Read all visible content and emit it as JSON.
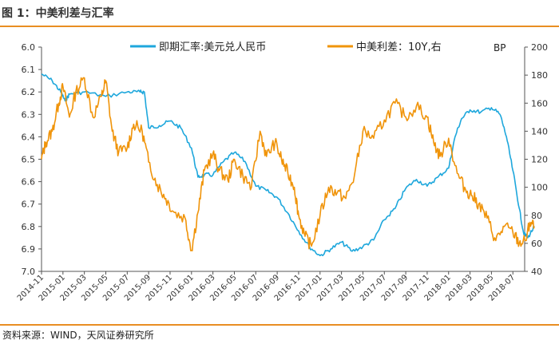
{
  "figure": {
    "title": "图 1：中美利差与汇率",
    "source": "资料来源：WIND，天风证券研究所"
  },
  "chart_data": {
    "type": "line",
    "title": "中美利差与汇率",
    "left_axis": {
      "label": "",
      "ylim": [
        6.0,
        7.0
      ],
      "inverted": true,
      "ticks": [
        "6.0",
        "6.1",
        "6.2",
        "6.3",
        "6.4",
        "6.5",
        "6.6",
        "6.7",
        "6.8",
        "6.9",
        "7.0"
      ]
    },
    "right_axis": {
      "label": "BP",
      "ylim": [
        40,
        200
      ],
      "ticks": [
        "200",
        "180",
        "160",
        "140",
        "120",
        "100",
        "80",
        "60",
        "40"
      ]
    },
    "x_ticks": [
      "2014-11",
      "2015-01",
      "2015-03",
      "2015-05",
      "2015-07",
      "2015-09",
      "2015-11",
      "2016-01",
      "2016-03",
      "2016-05",
      "2016-07",
      "2016-09",
      "2016-11",
      "2017-01",
      "2017-03",
      "2017-05",
      "2017-07",
      "2017-09",
      "2017-11",
      "2018-01",
      "2018-03",
      "2018-05",
      "2018-07"
    ],
    "colors": {
      "fx": "#1ea7dc",
      "spread": "#f0940a",
      "axis": "#555555"
    },
    "series": [
      {
        "name": "即期汇率:美元兑人民币",
        "axis": "left",
        "color": "#1ea7dc",
        "x": [
          0.0,
          0.5,
          0.9,
          1.1,
          1.3,
          2.0,
          3.0,
          4.0,
          4.6,
          4.8,
          5.0,
          5.5,
          6.0,
          6.5,
          7.0,
          7.3,
          7.6,
          8.0,
          8.5,
          9.0,
          9.5,
          10.0,
          10.5,
          11.0,
          11.5,
          12.0,
          12.5,
          13.0,
          13.5,
          14.0,
          14.5,
          15.0,
          15.5,
          16.0,
          16.5,
          17.0,
          17.5,
          18.0,
          18.5,
          19.0,
          19.3,
          19.6,
          20.0,
          20.5,
          21.0,
          21.4,
          21.7,
          22.0,
          22.3,
          22.5,
          22.7,
          23.0
        ],
        "values": [
          6.12,
          6.15,
          6.2,
          6.24,
          6.21,
          6.2,
          6.22,
          6.2,
          6.2,
          6.2,
          6.36,
          6.35,
          6.33,
          6.36,
          6.45,
          6.58,
          6.57,
          6.57,
          6.51,
          6.47,
          6.51,
          6.62,
          6.64,
          6.67,
          6.74,
          6.82,
          6.89,
          6.93,
          6.9,
          6.87,
          6.91,
          6.89,
          6.86,
          6.77,
          6.72,
          6.63,
          6.59,
          6.62,
          6.58,
          6.54,
          6.4,
          6.32,
          6.28,
          6.29,
          6.27,
          6.3,
          6.4,
          6.55,
          6.72,
          6.83,
          6.85,
          6.8
        ]
      },
      {
        "name": "中美利差：10Y,右",
        "axis": "right",
        "color": "#f0940a",
        "x": [
          0.0,
          0.2,
          0.5,
          0.8,
          1.0,
          1.3,
          1.6,
          2.0,
          2.4,
          2.8,
          3.0,
          3.3,
          3.6,
          4.0,
          4.3,
          4.7,
          5.0,
          5.4,
          5.8,
          6.2,
          6.7,
          7.0,
          7.3,
          7.6,
          8.0,
          8.3,
          8.7,
          9.0,
          9.4,
          9.8,
          10.2,
          10.5,
          10.9,
          11.2,
          11.5,
          11.8,
          12.0,
          12.3,
          12.6,
          13.0,
          13.4,
          13.8,
          14.2,
          14.6,
          15.0,
          15.5,
          16.0,
          16.5,
          17.0,
          17.5,
          18.0,
          18.3,
          18.6,
          19.0,
          19.4,
          19.8,
          20.1,
          20.4,
          20.8,
          21.2,
          21.6,
          22.0,
          22.3,
          22.6,
          22.8,
          23.0
        ],
        "values": [
          120,
          132,
          140,
          160,
          172,
          150,
          168,
          178,
          150,
          165,
          176,
          140,
          125,
          128,
          145,
          140,
          118,
          102,
          92,
          82,
          78,
          55,
          82,
          112,
          124,
          112,
          105,
          120,
          108,
          100,
          140,
          122,
          132,
          120,
          110,
          100,
          80,
          65,
          58,
          80,
          100,
          96,
          92,
          108,
          140,
          135,
          148,
          160,
          150,
          158,
          150,
          132,
          122,
          135,
          110,
          98,
          94,
          88,
          78,
          62,
          72,
          68,
          60,
          62,
          75,
          72
        ]
      }
    ]
  }
}
